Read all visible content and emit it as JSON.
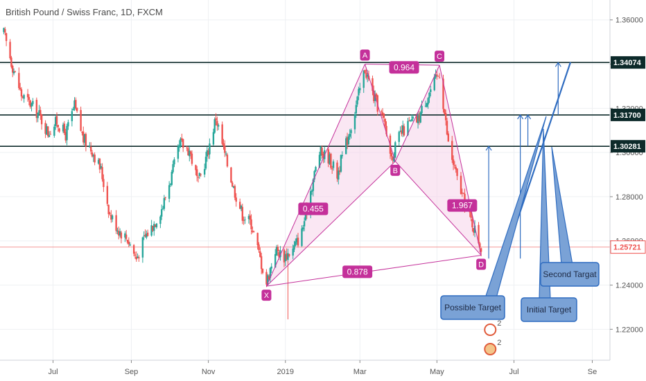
{
  "colors": {
    "up": "#26a69a",
    "down": "#ef5350",
    "level_line": "#0d2a2a",
    "pattern": "#c4309a",
    "pattern_fill": "#f6d3ea",
    "projection": "#2f6cc0",
    "callout_fill": "#7aa2d6",
    "current_price": "#ef5350"
  },
  "chart_data": {
    "type": "candlestick",
    "title": "British Pound / Swiss Franc, 1D, FXCM",
    "y_axis": {
      "ylim": [
        1.206,
        1.369
      ],
      "ticks": [
        {
          "value": 1.22,
          "label": "1.22000"
        },
        {
          "value": 1.24,
          "label": "1.24000"
        },
        {
          "value": 1.26,
          "label": "1.26000"
        },
        {
          "value": 1.28,
          "label": "1.28000"
        },
        {
          "value": 1.3,
          "label": "1.30000"
        },
        {
          "value": 1.32,
          "label": "1.32000"
        },
        {
          "value": 1.34,
          "label": "1.34000"
        },
        {
          "value": 1.36,
          "label": "1.36000"
        }
      ]
    },
    "x_axis": {
      "ticks": [
        {
          "value": "2018-07-01",
          "label": "Jul"
        },
        {
          "value": "2018-09-01",
          "label": "Sep"
        },
        {
          "value": "2018-11-01",
          "label": "Nov"
        },
        {
          "value": "2019-01-01",
          "label": "2019"
        },
        {
          "value": "2019-03-01",
          "label": "Mar"
        },
        {
          "value": "2019-05-01",
          "label": "May"
        },
        {
          "value": "2019-07-01",
          "label": "Jul"
        },
        {
          "value": "2019-09-01",
          "label": "Se"
        }
      ]
    },
    "price_path": [
      [
        "2018-05-23",
        1.354
      ],
      [
        "2018-05-30",
        1.339
      ],
      [
        "2018-06-06",
        1.326
      ],
      [
        "2018-06-13",
        1.322
      ],
      [
        "2018-06-20",
        1.317
      ],
      [
        "2018-06-27",
        1.309
      ],
      [
        "2018-07-04",
        1.314
      ],
      [
        "2018-07-11",
        1.308
      ],
      [
        "2018-07-18",
        1.321
      ],
      [
        "2018-07-25",
        1.306
      ],
      [
        "2018-08-01",
        1.301
      ],
      [
        "2018-08-08",
        1.292
      ],
      [
        "2018-08-15",
        1.272
      ],
      [
        "2018-08-22",
        1.265
      ],
      [
        "2018-08-29",
        1.261
      ],
      [
        "2018-09-05",
        1.252
      ],
      [
        "2018-09-12",
        1.262
      ],
      [
        "2018-09-19",
        1.268
      ],
      [
        "2018-09-26",
        1.276
      ],
      [
        "2018-10-03",
        1.29
      ],
      [
        "2018-10-10",
        1.304
      ],
      [
        "2018-10-17",
        1.301
      ],
      [
        "2018-10-24",
        1.286
      ],
      [
        "2018-10-31",
        1.299
      ],
      [
        "2018-11-07",
        1.316
      ],
      [
        "2018-11-14",
        1.299
      ],
      [
        "2018-11-21",
        1.284
      ],
      [
        "2018-11-28",
        1.272
      ],
      [
        "2018-12-05",
        1.268
      ],
      [
        "2018-12-12",
        1.252
      ],
      [
        "2018-12-17",
        1.241
      ],
      [
        "2018-12-24",
        1.256
      ],
      [
        "2018-12-31",
        1.253
      ],
      [
        "2019-01-07",
        1.256
      ],
      [
        "2019-01-14",
        1.264
      ],
      [
        "2019-01-21",
        1.283
      ],
      [
        "2019-01-28",
        1.3
      ],
      [
        "2019-02-04",
        1.298
      ],
      [
        "2019-02-11",
        1.29
      ],
      [
        "2019-02-18",
        1.304
      ],
      [
        "2019-02-25",
        1.319
      ],
      [
        "2019-03-05",
        1.338
      ],
      [
        "2019-03-12",
        1.325
      ],
      [
        "2019-03-19",
        1.316
      ],
      [
        "2019-03-26",
        1.298
      ],
      [
        "2019-04-02",
        1.308
      ],
      [
        "2019-04-09",
        1.313
      ],
      [
        "2019-04-16",
        1.315
      ],
      [
        "2019-04-23",
        1.325
      ],
      [
        "2019-05-03",
        1.336
      ],
      [
        "2019-05-10",
        1.304
      ],
      [
        "2019-05-17",
        1.288
      ],
      [
        "2019-05-24",
        1.275
      ],
      [
        "2019-05-31",
        1.265
      ],
      [
        "2019-06-05",
        1.2572
      ]
    ],
    "horizontal_levels": [
      1.34074,
      1.317,
      1.30281
    ],
    "current_price": 1.25721,
    "price_labels": [
      {
        "value": 1.34074,
        "label": "1.34074",
        "kind": "level"
      },
      {
        "value": 1.317,
        "label": "1.31700",
        "kind": "level"
      },
      {
        "value": 1.30281,
        "label": "1.30281",
        "kind": "level"
      },
      {
        "value": 1.25721,
        "label": "1.25721",
        "kind": "current"
      }
    ],
    "pattern_points": [
      {
        "name": "X",
        "date": "2018-12-17",
        "price": 1.2395
      },
      {
        "name": "A",
        "date": "2019-03-05",
        "price": 1.34
      },
      {
        "name": "B",
        "date": "2019-03-29",
        "price": 1.296
      },
      {
        "name": "C",
        "date": "2019-05-03",
        "price": 1.3395
      },
      {
        "name": "D",
        "date": "2019-06-05",
        "price": 1.2535
      }
    ],
    "pattern_ratios": [
      {
        "label": "0.455",
        "date": "2019-01-23",
        "price": 1.2745
      },
      {
        "label": "0.964",
        "date": "2019-04-05",
        "price": 1.3385
      },
      {
        "label": "1.967",
        "date": "2019-05-21",
        "price": 1.276
      },
      {
        "label": "0.878",
        "date": "2019-02-27",
        "price": 1.246
      }
    ],
    "targets": [
      {
        "label": "Possible Target",
        "date": "2019-06-11",
        "from": 1.252,
        "to": 1.3028
      },
      {
        "label": "Initial Target",
        "date": "2019-07-06",
        "from": 1.252,
        "to": 1.317
      },
      {
        "label": "Second Targat",
        "date": "2019-08-05",
        "from": 1.317,
        "to": 1.3407
      }
    ],
    "extra_projection": {
      "date": "2019-07-12",
      "from": 1.3028,
      "to": 1.317
    },
    "events": [
      {
        "label": "2",
        "date": "2019-06-10"
      },
      {
        "label": "2",
        "date": "2019-06-10"
      }
    ]
  }
}
